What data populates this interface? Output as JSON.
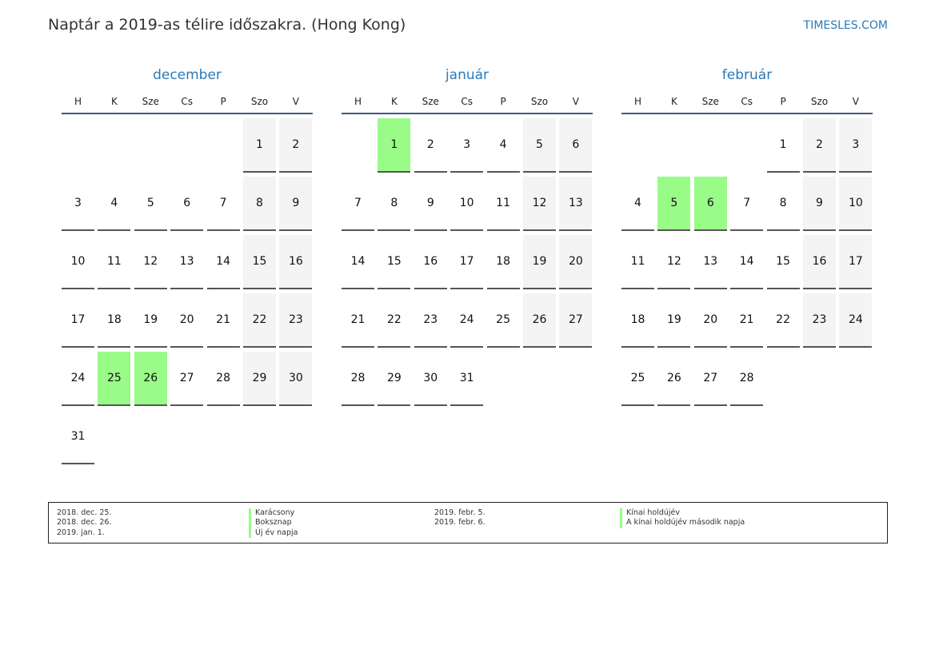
{
  "title": "Naptár a 2019-as télire időszakra. (Hong Kong)",
  "brand": "TIMESLES.COM",
  "colors": {
    "accent": "#2a7ab8",
    "holiday": "#99fb88",
    "weekend": "#f4f4f4"
  },
  "weekdays": [
    "H",
    "K",
    "Sze",
    "Cs",
    "P",
    "Szo",
    "V"
  ],
  "months": [
    {
      "name": "december",
      "weeks": [
        [
          null,
          null,
          null,
          null,
          null,
          "1",
          "2"
        ],
        [
          "3",
          "4",
          "5",
          "6",
          "7",
          "8",
          "9"
        ],
        [
          "10",
          "11",
          "12",
          "13",
          "14",
          "15",
          "16"
        ],
        [
          "17",
          "18",
          "19",
          "20",
          "21",
          "22",
          "23"
        ],
        [
          "24",
          "25",
          "26",
          "27",
          "28",
          "29",
          "30"
        ],
        [
          "31",
          null,
          null,
          null,
          null,
          null,
          null
        ]
      ],
      "holidays": [
        "25",
        "26"
      ]
    },
    {
      "name": "január",
      "weeks": [
        [
          null,
          "1",
          "2",
          "3",
          "4",
          "5",
          "6"
        ],
        [
          "7",
          "8",
          "9",
          "10",
          "11",
          "12",
          "13"
        ],
        [
          "14",
          "15",
          "16",
          "17",
          "18",
          "19",
          "20"
        ],
        [
          "21",
          "22",
          "23",
          "24",
          "25",
          "26",
          "27"
        ],
        [
          "28",
          "29",
          "30",
          "31",
          null,
          null,
          null
        ]
      ],
      "holidays": [
        "1"
      ]
    },
    {
      "name": "február",
      "weeks": [
        [
          null,
          null,
          null,
          null,
          "1",
          "2",
          "3"
        ],
        [
          "4",
          "5",
          "6",
          "7",
          "8",
          "9",
          "10"
        ],
        [
          "11",
          "12",
          "13",
          "14",
          "15",
          "16",
          "17"
        ],
        [
          "18",
          "19",
          "20",
          "21",
          "22",
          "23",
          "24"
        ],
        [
          "25",
          "26",
          "27",
          "28",
          null,
          null,
          null
        ]
      ],
      "holidays": [
        "5",
        "6"
      ]
    }
  ],
  "legend": {
    "col1_dates": [
      "2018. dec. 25.",
      "2018. dec. 26.",
      "2019. jan. 1."
    ],
    "col1_names": [
      "Karácsony",
      "Boksznap",
      "Új év napja"
    ],
    "col2_dates": [
      "2019. febr. 5.",
      "2019. febr. 6."
    ],
    "col2_names": [
      "Kínai holdújév",
      "A kínai holdújév második napja"
    ]
  }
}
